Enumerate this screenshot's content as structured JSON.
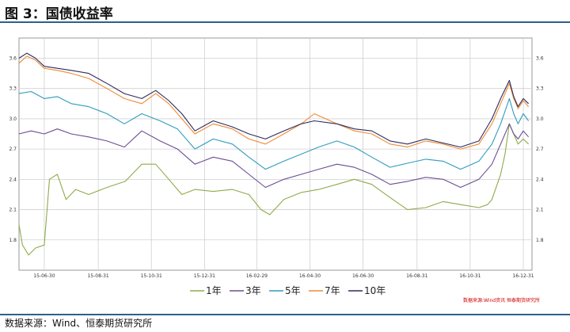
{
  "title": "图 3：国债收益率",
  "source": "数据来源：Wind、恒泰期货研究所",
  "watermark": "数据来源:Wind资讯 恒泰期货研究所",
  "chart_data": {
    "type": "line",
    "ylim": [
      1.5,
      3.8
    ],
    "yticks": [
      "1.8",
      "2.1",
      "2.4",
      "2.7",
      "3.0",
      "3.3",
      "3.6"
    ],
    "ytick_values": [
      1.8,
      2.1,
      2.4,
      2.7,
      3.0,
      3.3,
      3.6
    ],
    "xlim": [
      "2015-06-01",
      "2017-01-10"
    ],
    "xticks": [
      "15-06-30",
      "15-08-31",
      "15-10-31",
      "15-12-31",
      "16-02-29",
      "16-04-30",
      "16-06-30",
      "16-08-31",
      "16-10-31",
      "16-12-31"
    ],
    "xtick_dates": [
      "2015-06-30",
      "2015-08-31",
      "2015-10-31",
      "2015-12-31",
      "2016-02-29",
      "2016-04-30",
      "2016-06-30",
      "2016-08-31",
      "2016-10-31",
      "2016-12-31"
    ],
    "grid": true,
    "legend": "bottom",
    "series": [
      {
        "name": "1年",
        "color": "#8faa4b",
        "x": [
          "2015-06-01",
          "2015-06-05",
          "2015-06-12",
          "2015-06-20",
          "2015-06-30",
          "2015-07-06",
          "2015-07-15",
          "2015-07-25",
          "2015-08-05",
          "2015-08-20",
          "2015-09-10",
          "2015-10-01",
          "2015-10-20",
          "2015-11-05",
          "2015-11-20",
          "2015-12-05",
          "2015-12-20",
          "2016-01-10",
          "2016-02-01",
          "2016-02-20",
          "2016-03-05",
          "2016-03-15",
          "2016-03-31",
          "2016-04-20",
          "2016-05-10",
          "2016-05-31",
          "2016-06-20",
          "2016-07-10",
          "2016-07-31",
          "2016-08-20",
          "2016-09-10",
          "2016-09-30",
          "2016-10-20",
          "2016-11-10",
          "2016-11-20",
          "2016-11-25",
          "2016-12-01",
          "2016-12-05",
          "2016-12-10",
          "2016-12-15",
          "2016-12-20",
          "2016-12-25",
          "2016-12-31",
          "2017-01-06"
        ],
        "values": [
          1.95,
          1.75,
          1.65,
          1.72,
          1.75,
          2.4,
          2.45,
          2.2,
          2.3,
          2.25,
          2.32,
          2.38,
          2.55,
          2.55,
          2.4,
          2.25,
          2.3,
          2.28,
          2.3,
          2.25,
          2.1,
          2.05,
          2.2,
          2.27,
          2.3,
          2.35,
          2.4,
          2.35,
          2.22,
          2.1,
          2.12,
          2.18,
          2.15,
          2.12,
          2.15,
          2.2,
          2.35,
          2.45,
          2.65,
          2.95,
          2.85,
          2.75,
          2.8,
          2.75
        ]
      },
      {
        "name": "3年",
        "color": "#6a4e92",
        "x": [
          "2015-06-01",
          "2015-06-15",
          "2015-06-30",
          "2015-07-15",
          "2015-07-31",
          "2015-08-20",
          "2015-09-10",
          "2015-09-30",
          "2015-10-20",
          "2015-11-10",
          "2015-11-30",
          "2015-12-20",
          "2016-01-10",
          "2016-02-01",
          "2016-02-20",
          "2016-03-10",
          "2016-03-31",
          "2016-04-20",
          "2016-05-10",
          "2016-05-31",
          "2016-06-20",
          "2016-07-10",
          "2016-07-31",
          "2016-08-20",
          "2016-09-10",
          "2016-09-30",
          "2016-10-20",
          "2016-11-10",
          "2016-11-25",
          "2016-12-05",
          "2016-12-15",
          "2016-12-20",
          "2016-12-25",
          "2016-12-31",
          "2017-01-06"
        ],
        "values": [
          2.85,
          2.88,
          2.85,
          2.9,
          2.85,
          2.82,
          2.78,
          2.72,
          2.88,
          2.78,
          2.7,
          2.55,
          2.62,
          2.58,
          2.45,
          2.32,
          2.4,
          2.45,
          2.5,
          2.55,
          2.52,
          2.45,
          2.35,
          2.38,
          2.42,
          2.4,
          2.32,
          2.4,
          2.55,
          2.75,
          2.95,
          2.85,
          2.8,
          2.88,
          2.82
        ]
      },
      {
        "name": "5年",
        "color": "#2f9bc0",
        "x": [
          "2015-06-01",
          "2015-06-15",
          "2015-06-30",
          "2015-07-15",
          "2015-07-31",
          "2015-08-20",
          "2015-09-10",
          "2015-09-30",
          "2015-10-20",
          "2015-11-10",
          "2015-11-30",
          "2015-12-20",
          "2016-01-10",
          "2016-02-01",
          "2016-02-20",
          "2016-03-10",
          "2016-03-31",
          "2016-04-20",
          "2016-05-10",
          "2016-05-31",
          "2016-06-20",
          "2016-07-10",
          "2016-07-31",
          "2016-08-20",
          "2016-09-10",
          "2016-09-30",
          "2016-10-20",
          "2016-11-10",
          "2016-11-25",
          "2016-12-05",
          "2016-12-15",
          "2016-12-20",
          "2016-12-25",
          "2016-12-31",
          "2017-01-06"
        ],
        "values": [
          3.25,
          3.27,
          3.2,
          3.22,
          3.15,
          3.12,
          3.05,
          2.95,
          3.05,
          2.98,
          2.9,
          2.7,
          2.8,
          2.75,
          2.62,
          2.5,
          2.58,
          2.65,
          2.72,
          2.78,
          2.72,
          2.62,
          2.52,
          2.56,
          2.6,
          2.58,
          2.5,
          2.58,
          2.75,
          2.95,
          3.2,
          3.05,
          2.95,
          3.05,
          2.98
        ]
      },
      {
        "name": "7年",
        "color": "#f08a32",
        "x": [
          "2015-06-01",
          "2015-06-10",
          "2015-06-20",
          "2015-06-30",
          "2015-07-15",
          "2015-07-31",
          "2015-08-20",
          "2015-09-10",
          "2015-09-30",
          "2015-10-20",
          "2015-11-05",
          "2015-11-20",
          "2015-12-05",
          "2015-12-20",
          "2016-01-10",
          "2016-02-01",
          "2016-02-20",
          "2016-03-10",
          "2016-03-31",
          "2016-04-20",
          "2016-05-05",
          "2016-05-31",
          "2016-06-20",
          "2016-07-10",
          "2016-07-31",
          "2016-08-20",
          "2016-09-10",
          "2016-09-30",
          "2016-10-20",
          "2016-11-10",
          "2016-11-25",
          "2016-12-05",
          "2016-12-15",
          "2016-12-20",
          "2016-12-25",
          "2016-12-31",
          "2017-01-06"
        ],
        "values": [
          3.55,
          3.62,
          3.58,
          3.5,
          3.48,
          3.45,
          3.4,
          3.3,
          3.2,
          3.15,
          3.25,
          3.15,
          3.0,
          2.85,
          2.95,
          2.9,
          2.8,
          2.75,
          2.85,
          2.95,
          3.05,
          2.95,
          2.88,
          2.85,
          2.75,
          2.72,
          2.78,
          2.75,
          2.7,
          2.75,
          2.95,
          3.15,
          3.35,
          3.2,
          3.1,
          3.18,
          3.12
        ]
      },
      {
        "name": "10年",
        "color": "#2b2b5e",
        "x": [
          "2015-06-01",
          "2015-06-10",
          "2015-06-20",
          "2015-06-30",
          "2015-07-15",
          "2015-07-31",
          "2015-08-20",
          "2015-09-10",
          "2015-09-30",
          "2015-10-20",
          "2015-11-05",
          "2015-11-20",
          "2015-12-05",
          "2015-12-20",
          "2016-01-10",
          "2016-02-01",
          "2016-02-20",
          "2016-03-10",
          "2016-03-31",
          "2016-04-20",
          "2016-05-05",
          "2016-05-31",
          "2016-06-20",
          "2016-07-10",
          "2016-07-31",
          "2016-08-20",
          "2016-09-10",
          "2016-09-30",
          "2016-10-20",
          "2016-11-10",
          "2016-11-25",
          "2016-12-05",
          "2016-12-15",
          "2016-12-20",
          "2016-12-25",
          "2016-12-31",
          "2017-01-06"
        ],
        "values": [
          3.6,
          3.65,
          3.6,
          3.52,
          3.5,
          3.48,
          3.45,
          3.35,
          3.25,
          3.2,
          3.28,
          3.18,
          3.05,
          2.88,
          2.98,
          2.92,
          2.85,
          2.8,
          2.88,
          2.95,
          2.98,
          2.95,
          2.9,
          2.88,
          2.78,
          2.75,
          2.8,
          2.76,
          2.72,
          2.78,
          3.0,
          3.2,
          3.38,
          3.22,
          3.12,
          3.2,
          3.15
        ]
      }
    ]
  }
}
